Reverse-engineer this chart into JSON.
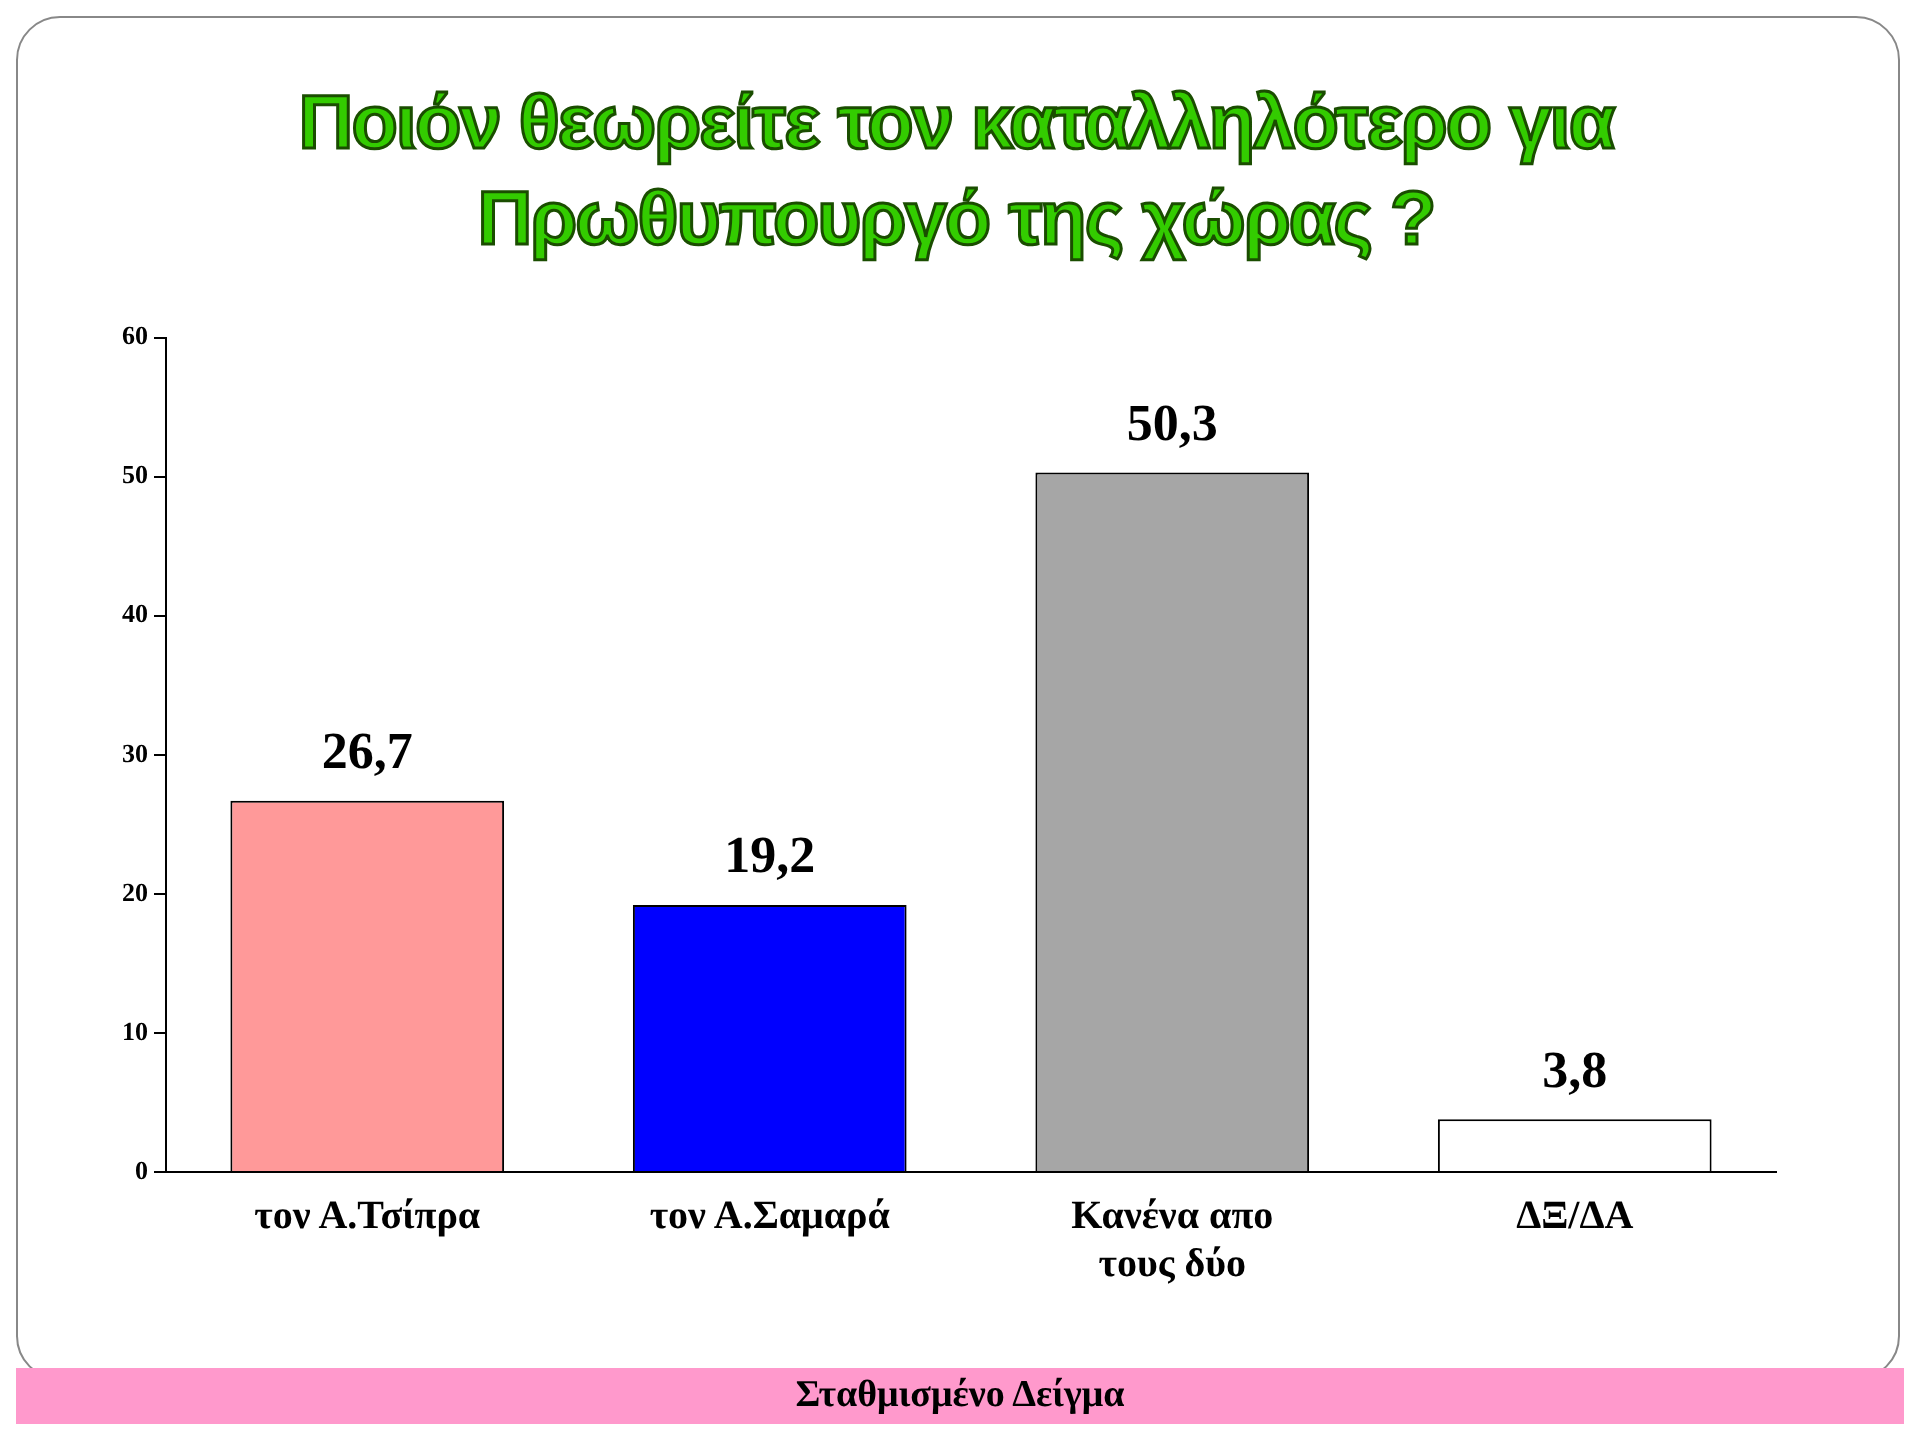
{
  "chart_data": {
    "type": "bar",
    "title": "Ποιόν θεωρείτε τον καταλληλότερο  για Πρωθυπουργό της χώρας  ?",
    "categories": [
      "τον Α.Τσίπρα",
      "τον Α.Σαμαρά",
      "Κανένα απο τους δύο",
      "ΔΞ/ΔΑ"
    ],
    "values": [
      26.7,
      19.2,
      50.3,
      3.8
    ],
    "colors": [
      "#ff9999",
      "#0000ff",
      "#a6a6a6",
      "#ffffff"
    ],
    "value_labels": [
      "26,7",
      "19,2",
      "50,3",
      "3,8"
    ],
    "ylim": [
      0,
      60
    ],
    "yticks": [
      0,
      10,
      20,
      30,
      40,
      50,
      60
    ],
    "grid": false,
    "legend": false,
    "annotations": [
      "Σταθμισμένο Δείγμα"
    ]
  }
}
